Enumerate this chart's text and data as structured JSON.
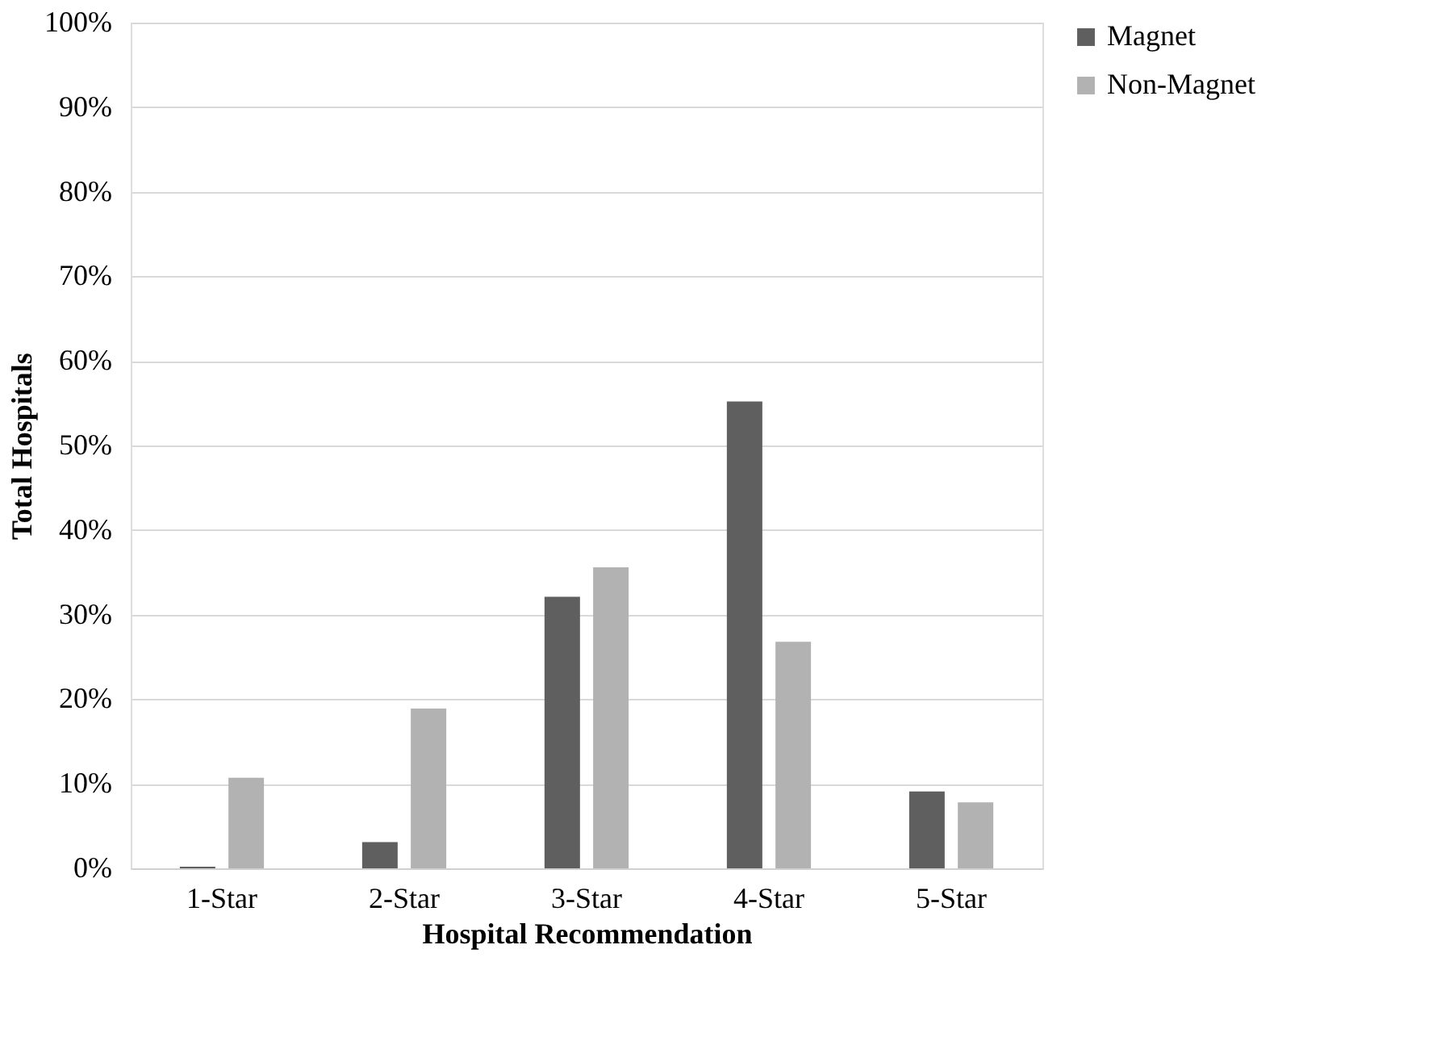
{
  "chart_data": {
    "type": "bar",
    "xlabel": "Hospital Recommendation",
    "ylabel": "Total Hospitals",
    "categories": [
      "1-Star",
      "2-Star",
      "3-Star",
      "4-Star",
      "5-Star"
    ],
    "series": [
      {
        "name": "Magnet",
        "color": "#5f5f5f",
        "values": [
          0.2,
          3.1,
          32.1,
          55.2,
          9.1
        ]
      },
      {
        "name": "Non-Magnet",
        "color": "#b2b2b2",
        "values": [
          10.7,
          18.9,
          35.6,
          26.8,
          7.8
        ]
      }
    ],
    "ylim": [
      0,
      100
    ],
    "yticks": [
      {
        "value": 0,
        "label": "0%"
      },
      {
        "value": 10,
        "label": "10%"
      },
      {
        "value": 20,
        "label": "20%"
      },
      {
        "value": 30,
        "label": "30%"
      },
      {
        "value": 40,
        "label": "40%"
      },
      {
        "value": 50,
        "label": "50%"
      },
      {
        "value": 60,
        "label": "60%"
      },
      {
        "value": 70,
        "label": "70%"
      },
      {
        "value": 80,
        "label": "80%"
      },
      {
        "value": 90,
        "label": "90%"
      },
      {
        "value": 100,
        "label": "100%"
      }
    ],
    "grid": "y",
    "legend": "right"
  }
}
